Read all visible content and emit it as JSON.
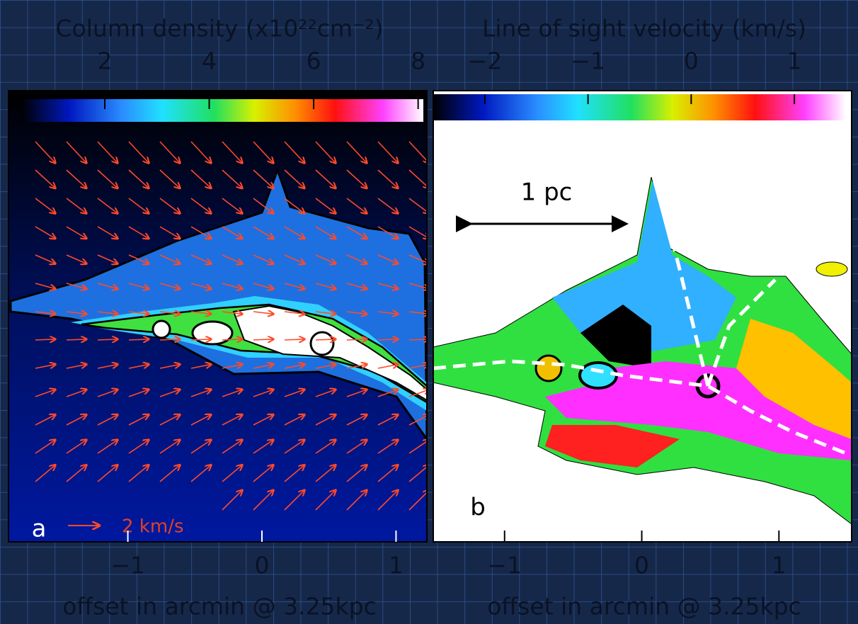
{
  "panels": [
    {
      "letter": "a",
      "colorbar": {
        "label": "Column density (x10²²cm⁻²)",
        "lim": [
          0.4,
          8.1
        ],
        "ticks": [
          2,
          4,
          6,
          8
        ]
      },
      "x_axis": {
        "label": "offset in arcmin @ 3.25kpc",
        "lim": [
          -1.89,
          1.23
        ],
        "ticks": [
          {
            "value": -1,
            "label": "−1"
          },
          0,
          1
        ]
      },
      "vector_key": "2 km/s"
    },
    {
      "letter": "b",
      "colorbar": {
        "label": "Line of sight velocity (km/s)",
        "lim": [
          -2.5,
          1.5
        ],
        "ticks": [
          {
            "value": -2,
            "label": "−2"
          },
          {
            "value": -1,
            "label": "−1"
          },
          0,
          1
        ]
      },
      "x_axis": {
        "label": "offset in arcmin @ 3.25kpc",
        "lim": [
          -1.52,
          1.53
        ],
        "ticks": [
          {
            "value": -1,
            "label": "−1"
          },
          0,
          1
        ]
      },
      "scale_bar": "1 pc"
    }
  ]
}
